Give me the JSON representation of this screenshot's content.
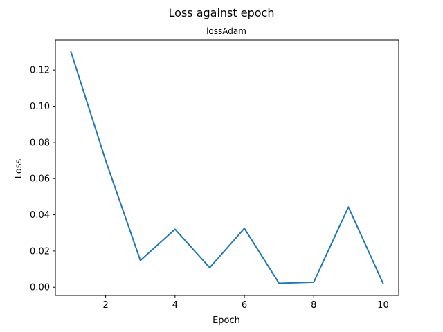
{
  "figure": {
    "suptitle": "Loss against epoch"
  },
  "chart_data": {
    "type": "line",
    "title": "lossAdam",
    "xlabel": "Epoch",
    "ylabel": "Loss",
    "xlim": [
      0.55,
      10.45
    ],
    "ylim": [
      -0.0045,
      0.1365
    ],
    "xticks": [
      2,
      4,
      6,
      8,
      10
    ],
    "xtick_labels": [
      "2",
      "4",
      "6",
      "8",
      "10"
    ],
    "yticks": [
      0.0,
      0.02,
      0.04,
      0.06,
      0.08,
      0.1,
      0.12
    ],
    "ytick_labels": [
      "0.00",
      "0.02",
      "0.04",
      "0.06",
      "0.08",
      "0.10",
      "0.12"
    ],
    "grid": false,
    "series": [
      {
        "color": "#1f77b4",
        "x": [
          1,
          2,
          3,
          4,
          5,
          6,
          7,
          8,
          9,
          10
        ],
        "y": [
          0.13,
          0.07,
          0.0148,
          0.032,
          0.0108,
          0.0325,
          0.0022,
          0.0028,
          0.0443,
          0.0021
        ]
      }
    ]
  }
}
